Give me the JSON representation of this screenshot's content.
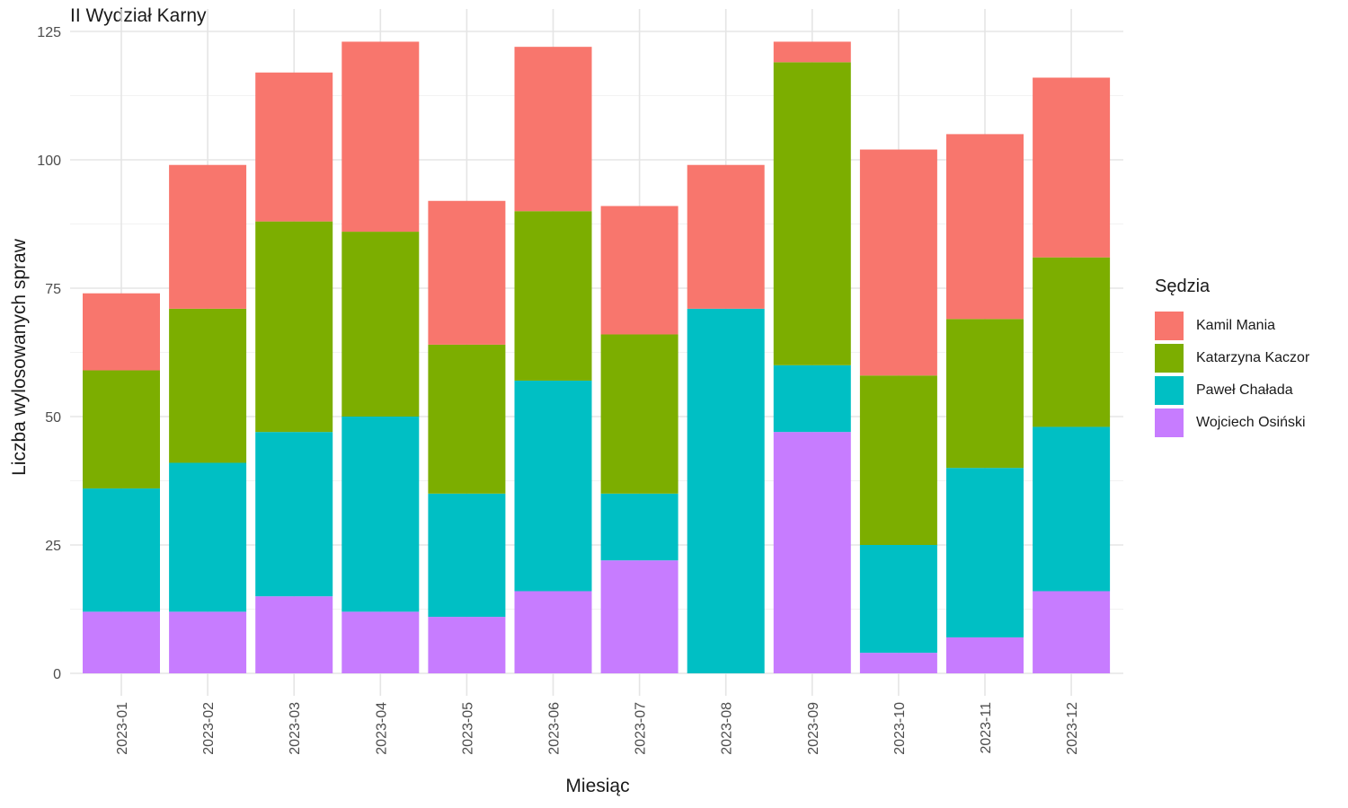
{
  "chart_data": {
    "type": "bar",
    "stacked": true,
    "title": "II Wydział Karny",
    "xlabel": "Miesiąc",
    "ylabel": "Liczba wylosowanych spraw",
    "ylim": [
      0,
      125
    ],
    "yticks": [
      0,
      25,
      50,
      75,
      100,
      125
    ],
    "grid": true,
    "legend_position": "right",
    "legend_title": "Sędzia",
    "categories": [
      "2023-01",
      "2023-02",
      "2023-03",
      "2023-04",
      "2023-05",
      "2023-06",
      "2023-07",
      "2023-08",
      "2023-09",
      "2023-10",
      "2023-11",
      "2023-12"
    ],
    "series": [
      {
        "name": "Wojciech Osiński",
        "color": "#C77CFF",
        "values": [
          12,
          12,
          15,
          12,
          11,
          16,
          22,
          0,
          47,
          4,
          7,
          16
        ]
      },
      {
        "name": "Paweł Chałada",
        "color": "#00BFC4",
        "values": [
          24,
          29,
          32,
          38,
          24,
          41,
          13,
          71,
          13,
          21,
          33,
          32
        ]
      },
      {
        "name": "Katarzyna Kaczor",
        "color": "#7CAE00",
        "values": [
          23,
          30,
          41,
          36,
          29,
          33,
          31,
          0,
          59,
          33,
          29,
          33
        ]
      },
      {
        "name": "Kamil Mania",
        "color": "#F8766D",
        "values": [
          15,
          28,
          29,
          37,
          28,
          32,
          25,
          28,
          4,
          44,
          36,
          35
        ]
      }
    ]
  }
}
